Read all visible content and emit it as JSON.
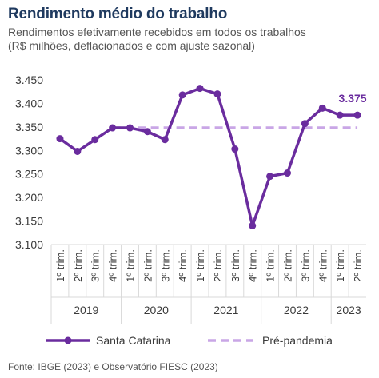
{
  "header": {
    "title": "Rendimento médio do trabalho",
    "subtitle_line1": "Rendimentos efetivamente recebidos em todos os trabalhos",
    "subtitle_line2": "(R$ milhões, deflacionados e com ajuste sazonal)"
  },
  "footer": {
    "source": "Fonte: IBGE (2023) e Observatório FIESC (2023)"
  },
  "colors": {
    "main_series": "#6a2c9e",
    "reference": "#c9a6e6",
    "grid": "#d9d9d9",
    "title": "#1f3a5f"
  },
  "chart_data": {
    "type": "line",
    "title": "Rendimento médio do trabalho",
    "y_ticks": [
      "3.100",
      "3.150",
      "3.200",
      "3.250",
      "3.300",
      "3.350",
      "3.400",
      "3.450"
    ],
    "ylim": [
      3100,
      3450
    ],
    "categories": [
      "1º trim.",
      "2º trim.",
      "3º trim.",
      "4º trim.",
      "1º trim.",
      "2º trim.",
      "3º trim.",
      "4º trim.",
      "1º trim.",
      "2º trim.",
      "3º trim.",
      "4º trim.",
      "1º trim.",
      "2º trim.",
      "3º trim.",
      "4º trim.",
      "1º trim.",
      "2º trim."
    ],
    "years": [
      {
        "label": "2019",
        "start": 0,
        "end": 3
      },
      {
        "label": "2020",
        "start": 4,
        "end": 7
      },
      {
        "label": "2021",
        "start": 8,
        "end": 11
      },
      {
        "label": "2022",
        "start": 12,
        "end": 15
      },
      {
        "label": "2023",
        "start": 16,
        "end": 17
      }
    ],
    "series": [
      {
        "name": "Santa Catarina",
        "values": [
          3325,
          3298,
          3323,
          3348,
          3348,
          3340,
          3323,
          3418,
          3432,
          3420,
          3303,
          3140,
          3245,
          3252,
          3357,
          3390,
          3375,
          3375
        ]
      },
      {
        "name": "Pré-pandemia",
        "style": "dashed",
        "values": [
          null,
          null,
          null,
          3348,
          3348,
          3348,
          3348,
          3348,
          3348,
          3348,
          3348,
          3348,
          3348,
          3348,
          3348,
          3348,
          3348,
          3348
        ]
      }
    ],
    "annotations": [
      {
        "index": 17,
        "text": "3.375"
      }
    ],
    "grid": false,
    "legend": "bottom"
  }
}
